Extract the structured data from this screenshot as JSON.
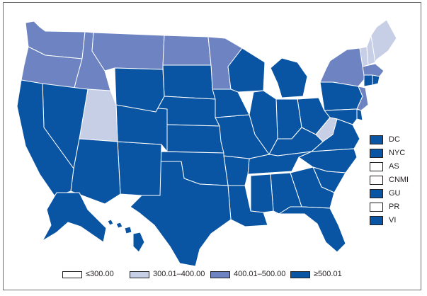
{
  "colors": {
    "bin1": "#ffffff",
    "bin2": "#c6cfe6",
    "bin3": "#6d83c2",
    "bin4": "#0a55a3",
    "border": "#ffffff",
    "frame": "#6d6e71"
  },
  "territories": [
    {
      "label": "DC",
      "bin": 4
    },
    {
      "label": "NYC",
      "bin": 4
    },
    {
      "label": "AS",
      "bin": 1
    },
    {
      "label": "CNMI",
      "bin": 1
    },
    {
      "label": "GU",
      "bin": 4
    },
    {
      "label": "PR",
      "bin": 1
    },
    {
      "label": "VI",
      "bin": 4
    }
  ],
  "legend": [
    {
      "label": "≤300.00",
      "bin": 1
    },
    {
      "label": "300.01–400.00",
      "bin": 2
    },
    {
      "label": "400.01–500.00",
      "bin": 3
    },
    {
      "label": "≥500.01",
      "bin": 4
    }
  ],
  "states": [
    {
      "name": "WA",
      "bin": 3
    },
    {
      "name": "OR",
      "bin": 3
    },
    {
      "name": "ID",
      "bin": 3
    },
    {
      "name": "MT",
      "bin": 3
    },
    {
      "name": "ND",
      "bin": 3
    },
    {
      "name": "MN",
      "bin": 3
    },
    {
      "name": "NY",
      "bin": 3
    },
    {
      "name": "NJ",
      "bin": 3
    },
    {
      "name": "MA",
      "bin": 3
    },
    {
      "name": "UT",
      "bin": 2
    },
    {
      "name": "WV",
      "bin": 2
    },
    {
      "name": "ME",
      "bin": 2
    },
    {
      "name": "NH",
      "bin": 2
    },
    {
      "name": "VT",
      "bin": 2
    },
    {
      "name": "CA",
      "bin": 4
    },
    {
      "name": "NV",
      "bin": 4
    },
    {
      "name": "AZ",
      "bin": 4
    },
    {
      "name": "WY",
      "bin": 4
    },
    {
      "name": "CO",
      "bin": 4
    },
    {
      "name": "NM",
      "bin": 4
    },
    {
      "name": "SD",
      "bin": 4
    },
    {
      "name": "NE",
      "bin": 4
    },
    {
      "name": "KS",
      "bin": 4
    },
    {
      "name": "OK",
      "bin": 4
    },
    {
      "name": "TX",
      "bin": 4
    },
    {
      "name": "IA",
      "bin": 4
    },
    {
      "name": "MO",
      "bin": 4
    },
    {
      "name": "AR",
      "bin": 4
    },
    {
      "name": "LA",
      "bin": 4
    },
    {
      "name": "WI",
      "bin": 4
    },
    {
      "name": "IL",
      "bin": 4
    },
    {
      "name": "MI",
      "bin": 4
    },
    {
      "name": "IN",
      "bin": 4
    },
    {
      "name": "OH",
      "bin": 4
    },
    {
      "name": "KY",
      "bin": 4
    },
    {
      "name": "TN",
      "bin": 4
    },
    {
      "name": "MS",
      "bin": 4
    },
    {
      "name": "AL",
      "bin": 4
    },
    {
      "name": "GA",
      "bin": 4
    },
    {
      "name": "FL",
      "bin": 4
    },
    {
      "name": "SC",
      "bin": 4
    },
    {
      "name": "NC",
      "bin": 4
    },
    {
      "name": "VA",
      "bin": 4
    },
    {
      "name": "PA",
      "bin": 4
    },
    {
      "name": "MD",
      "bin": 4
    },
    {
      "name": "DE",
      "bin": 4
    },
    {
      "name": "CT",
      "bin": 4
    },
    {
      "name": "RI",
      "bin": 4
    },
    {
      "name": "AK",
      "bin": 4
    },
    {
      "name": "HI",
      "bin": 4
    }
  ]
}
